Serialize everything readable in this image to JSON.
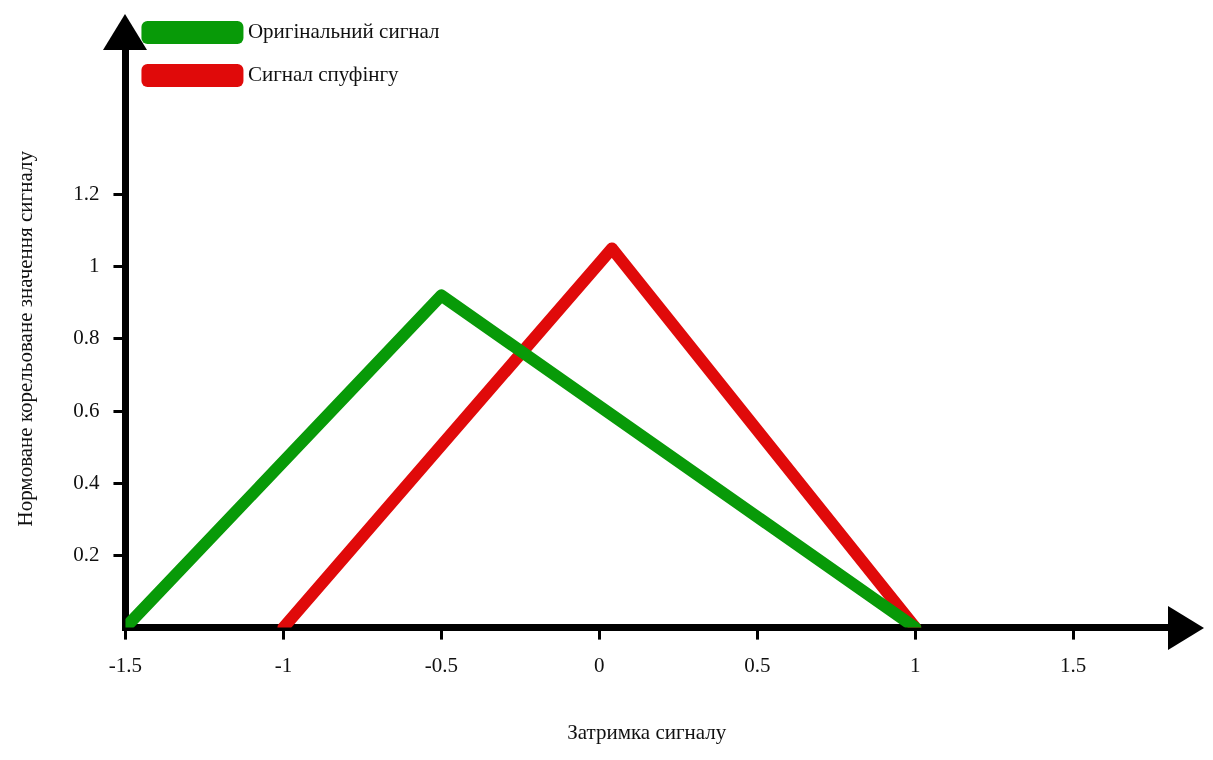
{
  "chart_data": {
    "type": "line",
    "xlabel": "Затримка сигналу",
    "ylabel": "Нормоване корельоване значення сигналу",
    "xlim": [
      -1.5,
      1.8
    ],
    "xticks": [
      -1.5,
      -1,
      -0.5,
      0,
      0.5,
      1,
      1.5
    ],
    "ylim": [
      0,
      1.6
    ],
    "yticks": [
      0.2,
      0.4,
      0.6,
      0.8,
      1,
      1.2
    ],
    "grid": false,
    "legend": "top left",
    "marker": "none",
    "line_style": "solid",
    "series": [
      {
        "name": "Оригінальний сигнал",
        "color": "#089a08",
        "x": [
          -1.5,
          -0.5,
          1
        ],
        "values": [
          0,
          0.92,
          0
        ]
      },
      {
        "name": "Сигнал спуфінгу",
        "color": "#e00a0a",
        "x": [
          -1,
          0.04,
          1
        ],
        "values": [
          0,
          1.05,
          0
        ]
      }
    ]
  }
}
